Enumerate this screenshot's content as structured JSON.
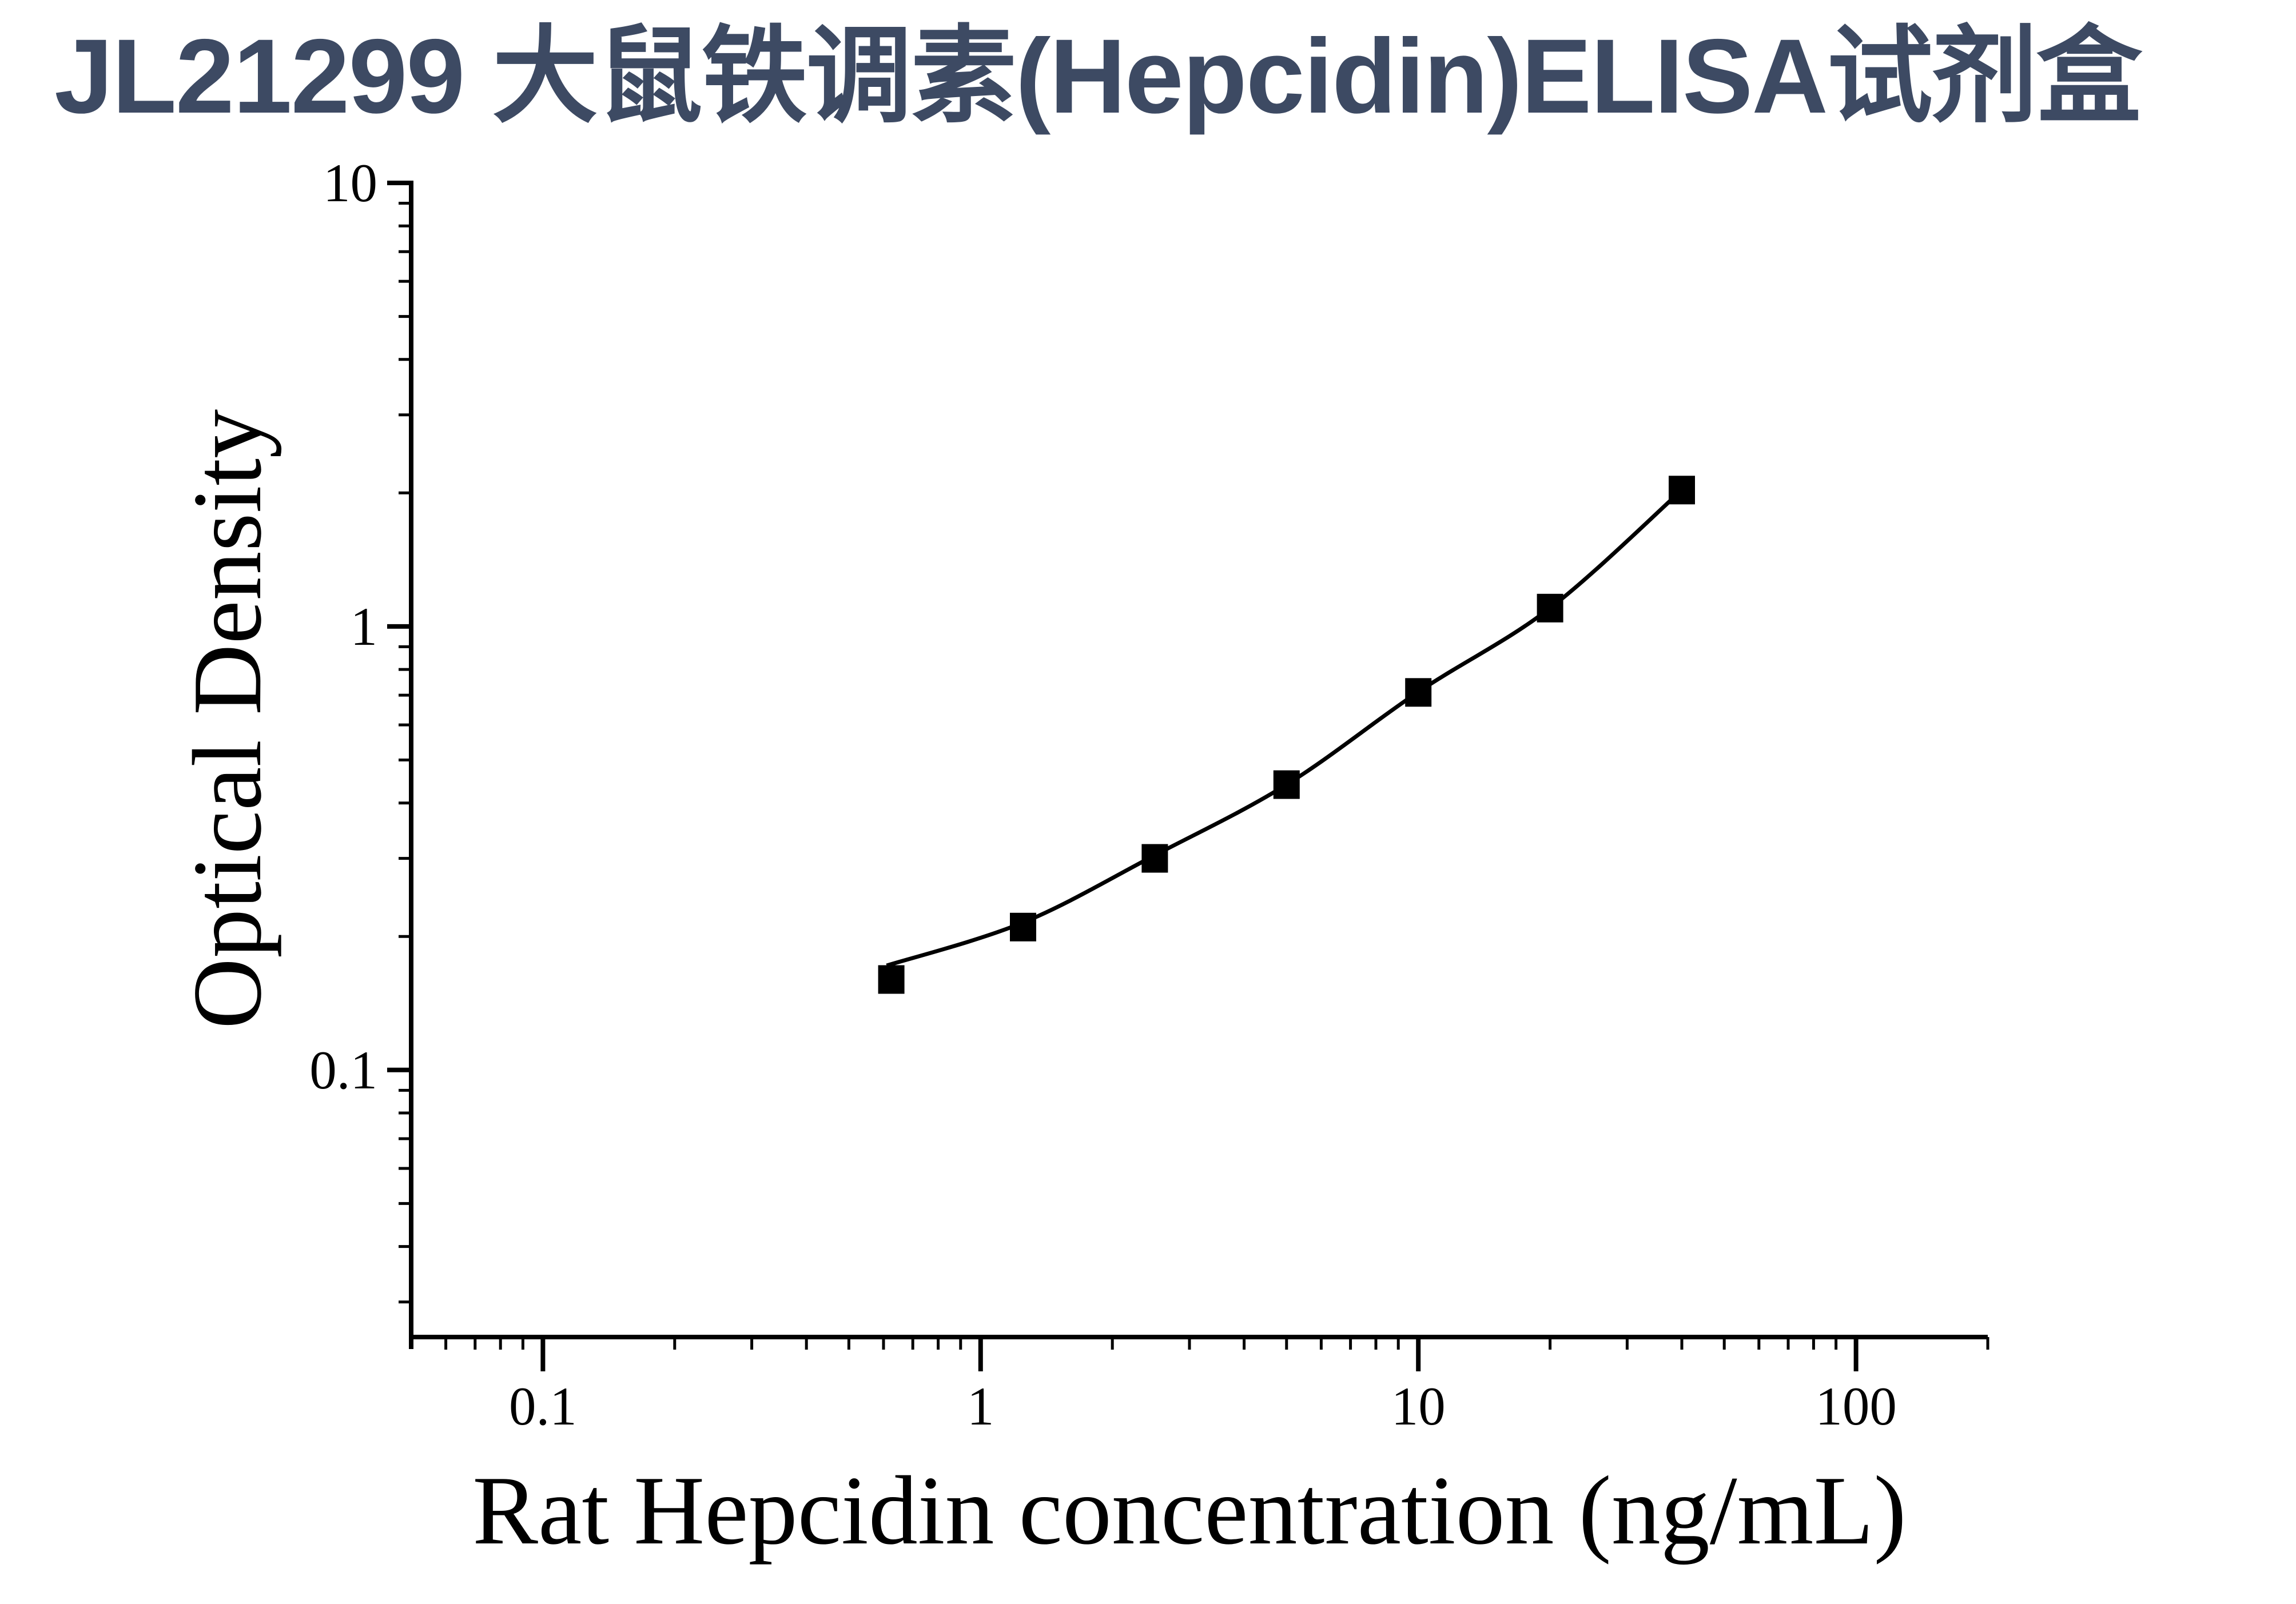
{
  "title": {
    "text": "JL21299 大鼠铁调素(Hepcidin)ELISA试剂盒",
    "color": "#3D4A63"
  },
  "chart_data": {
    "type": "scatter",
    "title": "JL21299 大鼠铁调素(Hepcidin)ELISA试剂盒",
    "xlabel": "Rat Hepcidin concentration (ng/mL)",
    "ylabel": "Optical Density",
    "x_scale": "log",
    "y_scale": "log",
    "xlim": [
      0.05,
      200
    ],
    "ylim": [
      0.025,
      10
    ],
    "grid": false,
    "legend": false,
    "axis_color": "#000000",
    "x_major_ticks": [
      0.1,
      1,
      10,
      100
    ],
    "x_major_tick_labels": [
      "0.1",
      "1",
      "10",
      "100"
    ],
    "x_minor_ticks": [
      0.06,
      0.07,
      0.08,
      0.09,
      0.2,
      0.3,
      0.4,
      0.5,
      0.6,
      0.7,
      0.8,
      0.9,
      2,
      3,
      4,
      5,
      6,
      7,
      8,
      9,
      20,
      30,
      40,
      50,
      60,
      70,
      80,
      90,
      200
    ],
    "y_major_ticks": [
      0.1,
      1,
      10
    ],
    "y_major_tick_labels": [
      "0.1",
      "1",
      "10"
    ],
    "y_minor_ticks": [
      0.03,
      0.04,
      0.05,
      0.06,
      0.07,
      0.08,
      0.09,
      0.2,
      0.3,
      0.4,
      0.5,
      0.6,
      0.7,
      0.8,
      0.9,
      2,
      3,
      4,
      5,
      6,
      7,
      8,
      9
    ],
    "series": [
      {
        "name": "standard-points",
        "marker": "square",
        "color": "#000000",
        "x": [
          0.625,
          1.25,
          2.5,
          5,
          10,
          20,
          40
        ],
        "y": [
          0.16,
          0.21,
          0.3,
          0.44,
          0.71,
          1.1,
          2.03
        ]
      }
    ],
    "fit_curve": {
      "name": "4pl-fit-line",
      "color": "#000000",
      "x": [
        0.61,
        1.25,
        2.5,
        5,
        10,
        20,
        40
      ],
      "y": [
        0.172,
        0.215,
        0.305,
        0.44,
        0.712,
        1.1,
        2.03
      ]
    }
  }
}
